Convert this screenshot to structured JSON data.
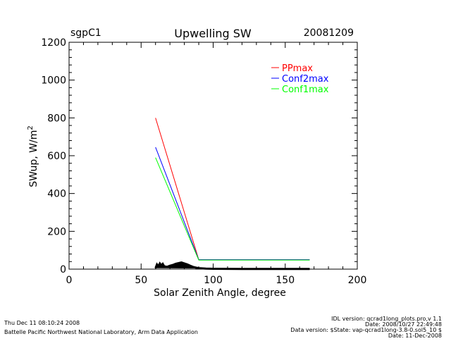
{
  "chart_data": {
    "type": "line",
    "title": "Upwelling SW",
    "site": "sgpC1",
    "date": "20081209",
    "xlabel": "Solar Zenith Angle, degree",
    "ylabel": "SWup, W/m",
    "ylabel_sup": "2",
    "xlim": [
      0,
      200
    ],
    "ylim": [
      0,
      1200
    ],
    "xticks": [
      0,
      50,
      100,
      150,
      200
    ],
    "yticks": [
      0,
      200,
      400,
      600,
      800,
      1000,
      1200
    ],
    "legend_position": "top-right",
    "series": [
      {
        "name": "PPmax",
        "color": "#ff0000",
        "x": [
          60,
          90,
          167
        ],
        "y": [
          800,
          50,
          50
        ]
      },
      {
        "name": "Conf2max",
        "color": "#0000ff",
        "x": [
          60,
          90,
          167
        ],
        "y": [
          645,
          50,
          50
        ]
      },
      {
        "name": "Conf1max",
        "color": "#00ff00",
        "x": [
          60,
          90,
          167
        ],
        "y": [
          590,
          48,
          48
        ]
      },
      {
        "name": "SWup",
        "color": "#000000",
        "x": [
          60,
          61,
          62,
          63,
          64,
          65,
          66,
          68,
          70,
          72,
          74,
          76,
          78,
          80,
          82,
          84,
          86,
          88,
          90,
          95,
          100,
          120,
          140,
          167
        ],
        "y": [
          5,
          25,
          15,
          30,
          20,
          28,
          15,
          12,
          18,
          22,
          28,
          32,
          35,
          30,
          25,
          18,
          12,
          8,
          5,
          3,
          2,
          1,
          1,
          1
        ]
      }
    ]
  },
  "footer": {
    "timestamp": "Thu Dec 11 08:10:24 2008",
    "org": "Battelle Pacific Northwest National Laboratory, Arm Data Application",
    "idl": "IDL version: qcrad1long_plots.pro,v 1.1",
    "idl_date": "Date: 2008/10/27 22:49:48",
    "data_version": "Data version: $State: vap-qcrad1long-3.8-0.sol5_10 $",
    "data_date": "Date: 11-Dec-2008"
  }
}
